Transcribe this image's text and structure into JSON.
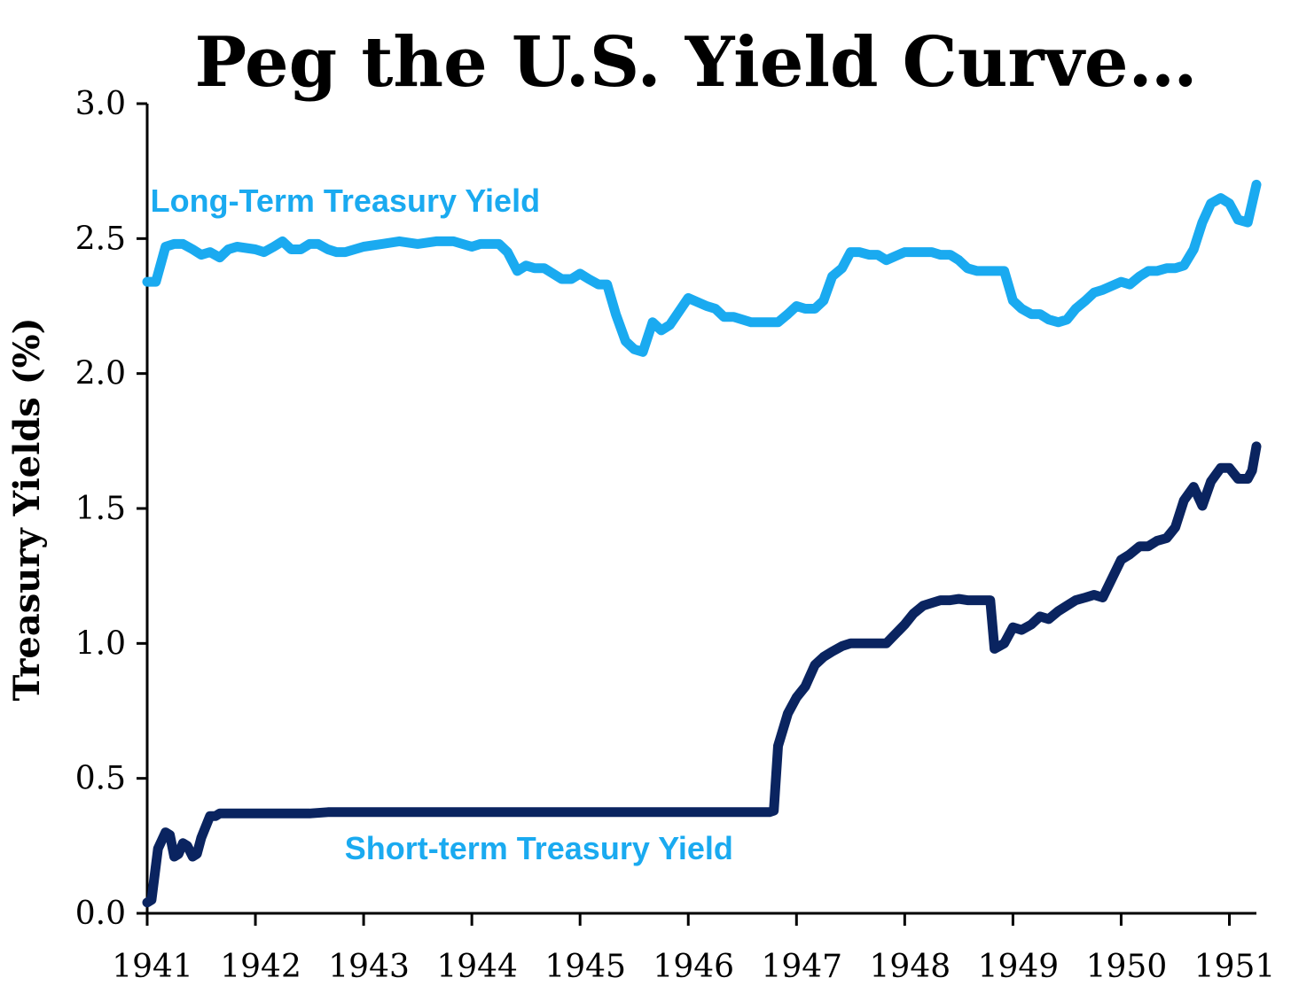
{
  "chart_data": {
    "type": "line",
    "title": "Peg the U.S. Yield Curve…",
    "ylabel": "Treasury Yields (%)",
    "xlabel": "",
    "xlim": [
      1941,
      1951.25
    ],
    "ylim": [
      0,
      3.0
    ],
    "x_ticks": [
      "1941",
      "1942",
      "1943",
      "1944",
      "1945",
      "1946",
      "1947",
      "1948",
      "1949",
      "1950",
      "1951"
    ],
    "y_ticks": [
      "0.0",
      "0.5",
      "1.0",
      "1.5",
      "2.0",
      "2.5",
      "3.0"
    ],
    "grid": false,
    "legend": "none",
    "series": [
      {
        "name": "Long-Term Treasury Yield",
        "color": "#1aaaf0",
        "x": [
          1941.0,
          1941.08,
          1941.17,
          1941.25,
          1941.33,
          1941.42,
          1941.5,
          1941.58,
          1941.67,
          1941.75,
          1941.83,
          1942.0,
          1942.08,
          1942.17,
          1942.25,
          1942.33,
          1942.42,
          1942.5,
          1942.58,
          1942.67,
          1942.75,
          1942.83,
          1943.0,
          1943.17,
          1943.33,
          1943.5,
          1943.67,
          1943.83,
          1944.0,
          1944.08,
          1944.17,
          1944.25,
          1944.33,
          1944.42,
          1944.5,
          1944.58,
          1944.67,
          1944.83,
          1944.92,
          1945.0,
          1945.08,
          1945.17,
          1945.25,
          1945.33,
          1945.42,
          1945.5,
          1945.58,
          1945.67,
          1945.75,
          1945.83,
          1946.0,
          1946.17,
          1946.25,
          1946.33,
          1946.42,
          1946.58,
          1946.67,
          1946.83,
          1946.92,
          1947.0,
          1947.08,
          1947.17,
          1947.25,
          1947.33,
          1947.42,
          1947.5,
          1947.58,
          1947.67,
          1947.75,
          1947.83,
          1948.0,
          1948.17,
          1948.25,
          1948.33,
          1948.42,
          1948.5,
          1948.58,
          1948.67,
          1948.75,
          1948.83,
          1948.92,
          1949.0,
          1949.08,
          1949.17,
          1949.25,
          1949.33,
          1949.42,
          1949.5,
          1949.58,
          1949.67,
          1949.75,
          1949.83,
          1950.0,
          1950.08,
          1950.17,
          1950.25,
          1950.33,
          1950.42,
          1950.5,
          1950.58,
          1950.67,
          1950.75,
          1950.83,
          1950.92,
          1951.0,
          1951.08,
          1951.17,
          1951.25
        ],
        "values": [
          2.34,
          2.34,
          2.47,
          2.48,
          2.48,
          2.46,
          2.44,
          2.45,
          2.43,
          2.46,
          2.47,
          2.46,
          2.45,
          2.47,
          2.49,
          2.46,
          2.46,
          2.48,
          2.48,
          2.46,
          2.45,
          2.45,
          2.47,
          2.48,
          2.49,
          2.48,
          2.49,
          2.49,
          2.47,
          2.48,
          2.48,
          2.48,
          2.45,
          2.38,
          2.4,
          2.39,
          2.39,
          2.35,
          2.35,
          2.37,
          2.35,
          2.33,
          2.33,
          2.22,
          2.12,
          2.09,
          2.08,
          2.19,
          2.16,
          2.18,
          2.28,
          2.25,
          2.24,
          2.21,
          2.21,
          2.19,
          2.19,
          2.19,
          2.22,
          2.25,
          2.24,
          2.24,
          2.27,
          2.36,
          2.39,
          2.45,
          2.45,
          2.44,
          2.44,
          2.42,
          2.45,
          2.45,
          2.45,
          2.44,
          2.44,
          2.42,
          2.39,
          2.38,
          2.38,
          2.38,
          2.38,
          2.27,
          2.24,
          2.22,
          2.22,
          2.2,
          2.19,
          2.2,
          2.24,
          2.27,
          2.3,
          2.31,
          2.34,
          2.33,
          2.36,
          2.38,
          2.38,
          2.39,
          2.39,
          2.4,
          2.46,
          2.56,
          2.63,
          2.65,
          2.63,
          2.57,
          2.56,
          2.7
        ]
      },
      {
        "name": "Short-term Treasury Yield",
        "color": "#0a2460",
        "x": [
          1941.0,
          1941.04,
          1941.1,
          1941.17,
          1941.21,
          1941.25,
          1941.29,
          1941.33,
          1941.37,
          1941.42,
          1941.46,
          1941.5,
          1941.58,
          1941.63,
          1941.67,
          1941.75,
          1941.83,
          1941.92,
          1942.0,
          1942.08,
          1942.17,
          1942.25,
          1942.33,
          1942.5,
          1942.67,
          1942.83,
          1943.0,
          1943.17,
          1943.33,
          1943.5,
          1944.0,
          1944.5,
          1945.0,
          1945.5,
          1946.0,
          1946.5,
          1946.75,
          1946.79,
          1946.83,
          1946.92,
          1947.0,
          1947.08,
          1947.17,
          1947.25,
          1947.33,
          1947.42,
          1947.5,
          1947.58,
          1947.67,
          1947.75,
          1947.83,
          1948.0,
          1948.08,
          1948.17,
          1948.25,
          1948.33,
          1948.42,
          1948.5,
          1948.58,
          1948.67,
          1948.75,
          1948.79,
          1948.83,
          1948.92,
          1949.0,
          1949.08,
          1949.17,
          1949.25,
          1949.33,
          1949.42,
          1949.5,
          1949.58,
          1949.67,
          1949.75,
          1949.83,
          1950.0,
          1950.08,
          1950.17,
          1950.25,
          1950.33,
          1950.42,
          1950.5,
          1950.58,
          1950.67,
          1950.75,
          1950.83,
          1950.92,
          1951.0,
          1951.08,
          1951.17,
          1951.21,
          1951.25
        ],
        "values": [
          0.04,
          0.05,
          0.24,
          0.3,
          0.29,
          0.21,
          0.22,
          0.26,
          0.25,
          0.21,
          0.22,
          0.28,
          0.36,
          0.36,
          0.37,
          0.37,
          0.37,
          0.37,
          0.37,
          0.37,
          0.37,
          0.37,
          0.37,
          0.37,
          0.375,
          0.375,
          0.375,
          0.375,
          0.375,
          0.375,
          0.375,
          0.375,
          0.375,
          0.375,
          0.375,
          0.375,
          0.375,
          0.38,
          0.62,
          0.74,
          0.8,
          0.84,
          0.92,
          0.95,
          0.97,
          0.99,
          1.0,
          1.0,
          1.0,
          1.0,
          1.0,
          1.07,
          1.11,
          1.14,
          1.15,
          1.16,
          1.16,
          1.165,
          1.16,
          1.16,
          1.16,
          1.16,
          0.98,
          1.0,
          1.06,
          1.05,
          1.07,
          1.1,
          1.09,
          1.12,
          1.14,
          1.16,
          1.17,
          1.18,
          1.17,
          1.31,
          1.33,
          1.36,
          1.36,
          1.38,
          1.39,
          1.43,
          1.53,
          1.58,
          1.51,
          1.6,
          1.65,
          1.65,
          1.61,
          1.61,
          1.64,
          1.73
        ]
      }
    ],
    "annotations": [
      {
        "text": "Long-Term Treasury Yield",
        "color": "#1aaaf0",
        "x": 1942.83,
        "y": 2.6
      },
      {
        "text": "Short-term Treasury Yield",
        "color": "#1aaaf0",
        "x": 1944.62,
        "y": 0.2
      }
    ]
  }
}
